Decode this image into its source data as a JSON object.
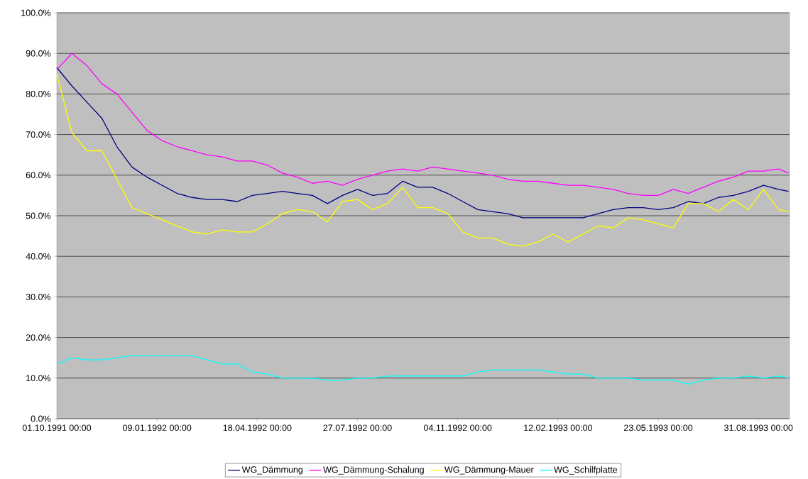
{
  "chart_data": {
    "type": "line",
    "x": [
      "1991-10-01",
      "1991-10-16",
      "1991-10-31",
      "1991-11-15",
      "1991-11-30",
      "1991-12-15",
      "1991-12-30",
      "1992-01-14",
      "1992-01-29",
      "1992-02-13",
      "1992-02-28",
      "1992-03-14",
      "1992-03-29",
      "1992-04-13",
      "1992-04-28",
      "1992-05-13",
      "1992-05-28",
      "1992-06-12",
      "1992-06-27",
      "1992-07-12",
      "1992-07-27",
      "1992-08-11",
      "1992-08-26",
      "1992-09-10",
      "1992-09-25",
      "1992-10-10",
      "1992-10-25",
      "1992-11-09",
      "1992-11-24",
      "1992-12-09",
      "1992-12-24",
      "1993-01-08",
      "1993-01-23",
      "1993-02-07",
      "1993-02-22",
      "1993-03-09",
      "1993-03-24",
      "1993-04-08",
      "1993-04-23",
      "1993-05-08",
      "1993-05-23",
      "1993-06-07",
      "1993-06-22",
      "1993-07-07",
      "1993-07-22",
      "1993-08-06",
      "1993-08-21",
      "1993-09-05",
      "1993-09-20",
      "1993-09-30"
    ],
    "series": [
      {
        "name": "WG_Dämmung",
        "color": "#000080",
        "values": [
          86.5,
          82,
          78,
          74,
          67,
          62,
          59.5,
          57.5,
          55.5,
          54.5,
          54,
          54,
          53.5,
          55,
          55.5,
          56,
          55.5,
          55,
          53,
          55,
          56.5,
          55,
          55.5,
          58.5,
          57,
          57,
          55.5,
          53.5,
          51.5,
          51,
          50.5,
          49.5,
          49.5,
          49.5,
          49.5,
          49.5,
          50.5,
          51.5,
          52,
          52,
          51.5,
          52,
          53.5,
          53,
          54.5,
          55,
          56,
          57.5,
          56.5,
          56
        ]
      },
      {
        "name": "WG_Dämmung-Schalung",
        "color": "#ff00ff",
        "values": [
          86,
          90,
          87,
          82.5,
          80,
          75.5,
          71,
          68.5,
          67,
          66,
          65,
          64.5,
          63.5,
          63.5,
          62.5,
          60.5,
          59.5,
          58,
          58.5,
          57.5,
          59,
          60,
          61,
          61.5,
          61,
          62,
          61.5,
          61,
          60.5,
          60,
          59,
          58.5,
          58.5,
          58,
          57.5,
          57.5,
          57,
          56.5,
          55.5,
          55,
          55,
          56.5,
          55.5,
          57,
          58.5,
          59.5,
          61,
          61,
          61.5,
          60.5
        ]
      },
      {
        "name": "WG_Dämmung-Mauer",
        "color": "#ffff00",
        "values": [
          85,
          70.5,
          66,
          66,
          59,
          52,
          50.5,
          49,
          47.5,
          46,
          45.5,
          46.5,
          46,
          46,
          48,
          50.5,
          51.5,
          51,
          48.5,
          53.5,
          54,
          51.5,
          53,
          57,
          52,
          52,
          50.5,
          46,
          44.5,
          44.5,
          43,
          42.5,
          43.5,
          45.5,
          43.5,
          45.5,
          47.5,
          47,
          49.5,
          49,
          48,
          47,
          53,
          53,
          51,
          54,
          51.5,
          56.5,
          51.5,
          51
        ]
      },
      {
        "name": "WG_Schilfplatte",
        "color": "#00ffff",
        "values": [
          13.5,
          15,
          14.5,
          14.5,
          15,
          15.5,
          15.5,
          15.5,
          15.5,
          15.5,
          14.5,
          13.5,
          13.5,
          11.5,
          11,
          10,
          10,
          10,
          9.5,
          9.5,
          10,
          10,
          10.5,
          10.5,
          10.5,
          10.5,
          10.5,
          10.5,
          11.5,
          12,
          12,
          12,
          12,
          11.5,
          11,
          11,
          10,
          10,
          10,
          9.5,
          9.5,
          9.5,
          8.5,
          9.5,
          10,
          10,
          10.5,
          10,
          10.5,
          10
        ]
      }
    ],
    "xlim": [
      "1991-10-01",
      "1993-10-01"
    ],
    "xticks": [
      {
        "value": "1991-10-01",
        "label": "01.10.1991 00:00"
      },
      {
        "value": "1992-01-09",
        "label": "09.01.1992 00:00"
      },
      {
        "value": "1992-04-18",
        "label": "18.04.1992 00:00"
      },
      {
        "value": "1992-07-27",
        "label": "27.07.1992 00:00"
      },
      {
        "value": "1992-11-04",
        "label": "04.11.1992 00:00"
      },
      {
        "value": "1993-02-12",
        "label": "12.02.1993 00:00"
      },
      {
        "value": "1993-05-23",
        "label": "23.05.1993 00:00"
      },
      {
        "value": "1993-08-31",
        "label": "31.08.1993 00:00"
      }
    ],
    "ylim": [
      0,
      100
    ],
    "yticks": [
      {
        "value": 0,
        "label": "0.0%"
      },
      {
        "value": 10,
        "label": "10.0%"
      },
      {
        "value": 20,
        "label": "20.0%"
      },
      {
        "value": 30,
        "label": "30.0%"
      },
      {
        "value": 40,
        "label": "40.0%"
      },
      {
        "value": 50,
        "label": "50.0%"
      },
      {
        "value": 60,
        "label": "60.0%"
      },
      {
        "value": 70,
        "label": "70.0%"
      },
      {
        "value": 80,
        "label": "80.0%"
      },
      {
        "value": 90,
        "label": "90.0%"
      },
      {
        "value": 100,
        "label": "100.0%"
      }
    ],
    "grid": "y",
    "legend": "bottom"
  }
}
